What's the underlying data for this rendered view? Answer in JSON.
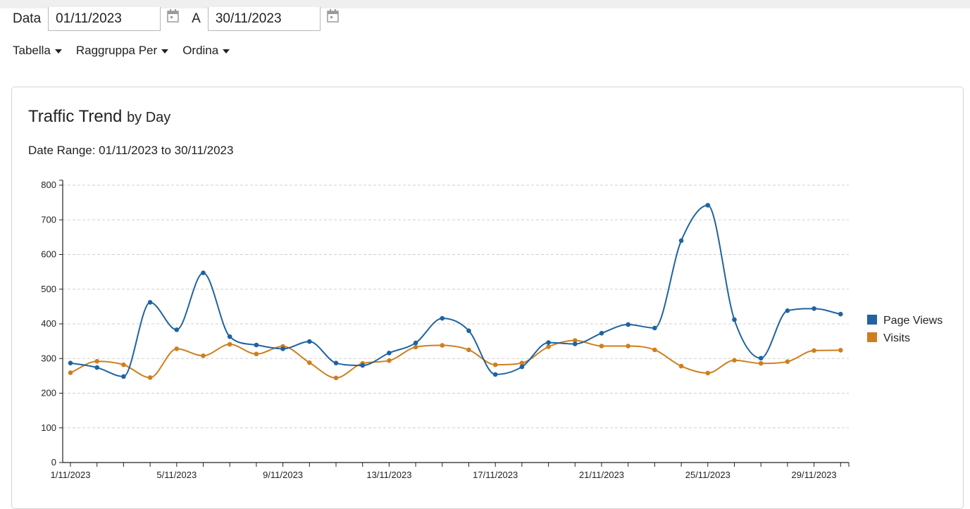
{
  "filters": {
    "from_label": "Data",
    "from_value": "01/11/2023",
    "to_label": "A",
    "to_value": "30/11/2023"
  },
  "menus": [
    {
      "label": "Tabella"
    },
    {
      "label": "Raggruppa Per"
    },
    {
      "label": "Ordina"
    }
  ],
  "panel": {
    "title": "Traffic Trend",
    "title_suffix": "by Day",
    "range_text": "Date Range: 01/11/2023 to 30/11/2023"
  },
  "chart_data": {
    "type": "line",
    "x": [
      "1/11/2023",
      "2/11/2023",
      "3/11/2023",
      "4/11/2023",
      "5/11/2023",
      "6/11/2023",
      "7/11/2023",
      "8/11/2023",
      "9/11/2023",
      "10/11/2023",
      "11/11/2023",
      "12/11/2023",
      "13/11/2023",
      "14/11/2023",
      "15/11/2023",
      "16/11/2023",
      "17/11/2023",
      "18/11/2023",
      "19/11/2023",
      "20/11/2023",
      "21/11/2023",
      "22/11/2023",
      "23/11/2023",
      "24/11/2023",
      "25/11/2023",
      "26/11/2023",
      "27/11/2023",
      "28/11/2023",
      "29/11/2023",
      "30/11/2023"
    ],
    "x_tick_labels": [
      "1/11/2023",
      "5/11/2023",
      "9/11/2023",
      "13/11/2023",
      "17/11/2023",
      "21/11/2023",
      "25/11/2023",
      "29/11/2023"
    ],
    "series": [
      {
        "name": "Page Views",
        "color": "#1f63a1",
        "values": [
          287,
          274,
          248,
          462,
          383,
          547,
          363,
          339,
          328,
          349,
          287,
          280,
          316,
          345,
          416,
          380,
          254,
          276,
          346,
          342,
          373,
          398,
          388,
          640,
          742,
          412,
          301,
          438,
          444,
          428
        ]
      },
      {
        "name": "Visits",
        "color": "#d07e1d",
        "values": [
          259,
          292,
          282,
          245,
          328,
          308,
          341,
          313,
          335,
          288,
          244,
          286,
          294,
          333,
          338,
          325,
          282,
          287,
          334,
          352,
          336,
          336,
          325,
          278,
          258,
          295,
          286,
          291,
          323,
          324
        ]
      }
    ],
    "yticks": [
      0,
      100,
      200,
      300,
      400,
      500,
      600,
      700,
      800
    ],
    "ylim": [
      0,
      800
    ],
    "grid": true,
    "legend": "right"
  }
}
